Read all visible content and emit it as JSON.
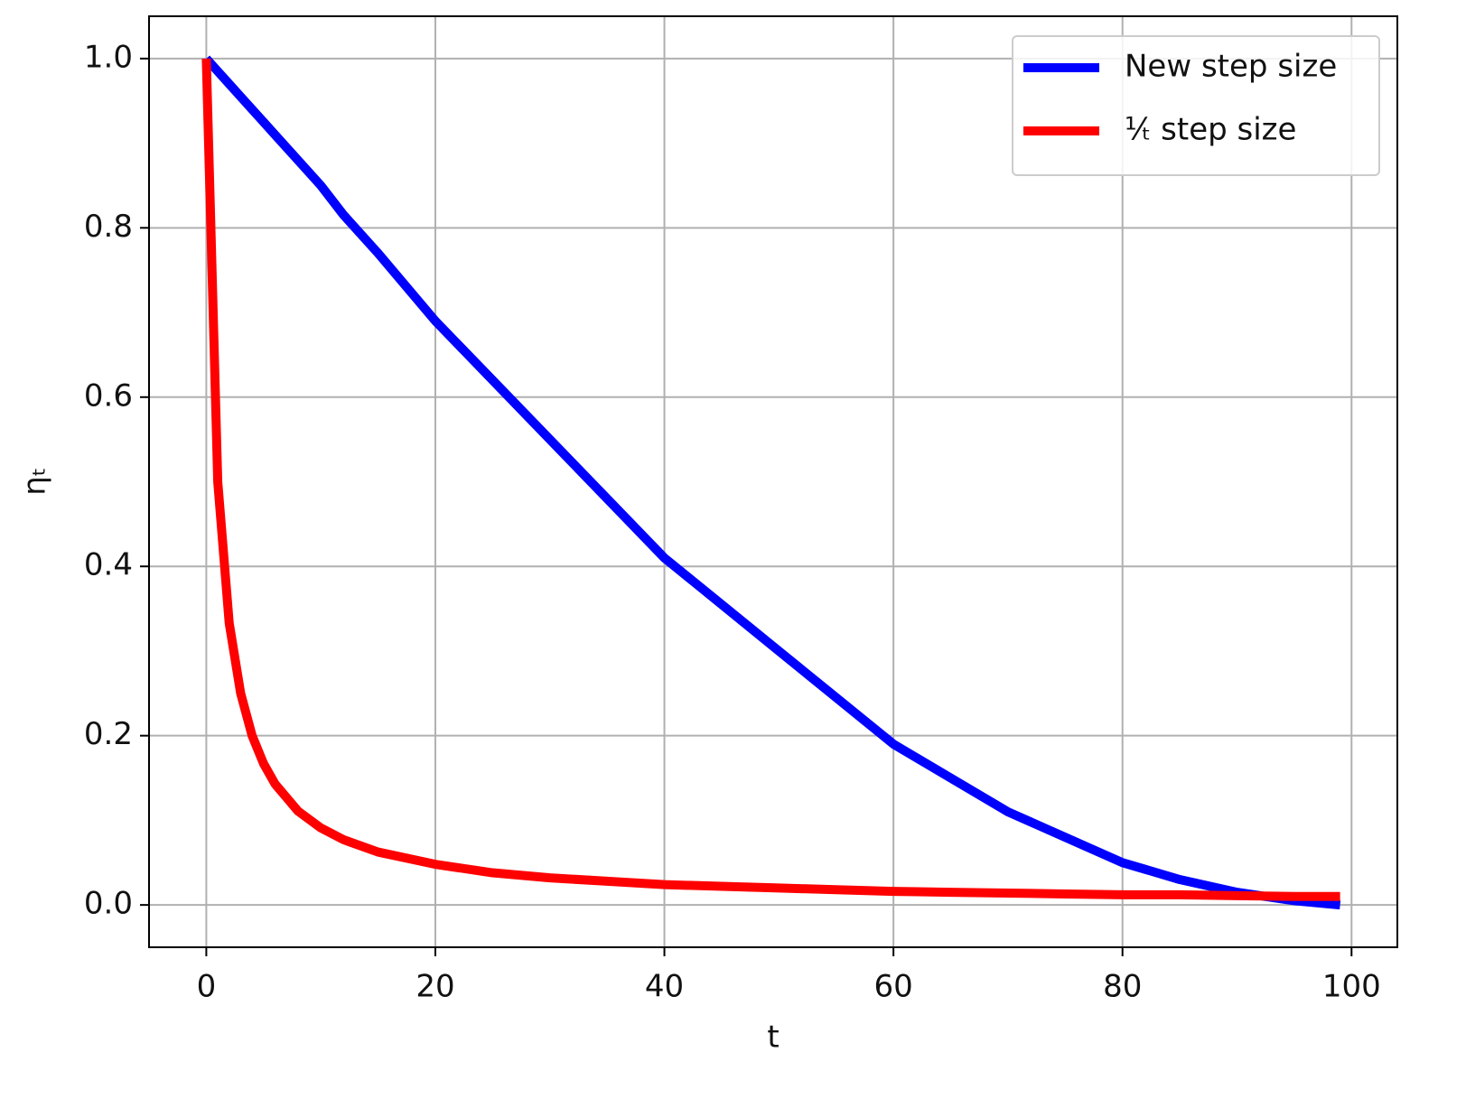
{
  "chart_data": {
    "type": "line",
    "x_label": "t",
    "y_label": "ηₜ",
    "x": [
      0,
      1,
      2,
      3,
      4,
      5,
      6,
      8,
      10,
      12,
      15,
      20,
      25,
      30,
      35,
      40,
      45,
      50,
      55,
      60,
      65,
      70,
      75,
      80,
      85,
      90,
      95,
      99
    ],
    "series": [
      {
        "name": "New step size",
        "color": "#0000ff",
        "values": [
          1.0,
          0.985,
          0.97,
          0.955,
          0.94,
          0.925,
          0.91,
          0.88,
          0.85,
          0.815,
          0.77,
          0.69,
          0.62,
          0.55,
          0.48,
          0.41,
          0.355,
          0.3,
          0.245,
          0.19,
          0.15,
          0.11,
          0.08,
          0.05,
          0.03,
          0.015,
          0.005,
          0
        ]
      },
      {
        "name": "¹⁄ₜ step size",
        "color": "#ff0000",
        "values": [
          1.0,
          0.5,
          0.333,
          0.25,
          0.2,
          0.167,
          0.143,
          0.111,
          0.091,
          0.077,
          0.0625,
          0.048,
          0.038,
          0.032,
          0.028,
          0.024,
          0.022,
          0.02,
          0.018,
          0.016,
          0.015,
          0.014,
          0.013,
          0.012,
          0.012,
          0.011,
          0.01,
          0.01
        ]
      }
    ],
    "xlim": [
      -5,
      104
    ],
    "ylim": [
      -0.05,
      1.05
    ],
    "xticks": [
      0,
      20,
      40,
      60,
      80,
      100
    ],
    "yticks": [
      {
        "value": 0,
        "label": "0.0"
      },
      0.2,
      0.4,
      0.6,
      0.8,
      {
        "value": 1,
        "label": "1.0"
      }
    ],
    "grid": true,
    "legend": "upper right"
  }
}
